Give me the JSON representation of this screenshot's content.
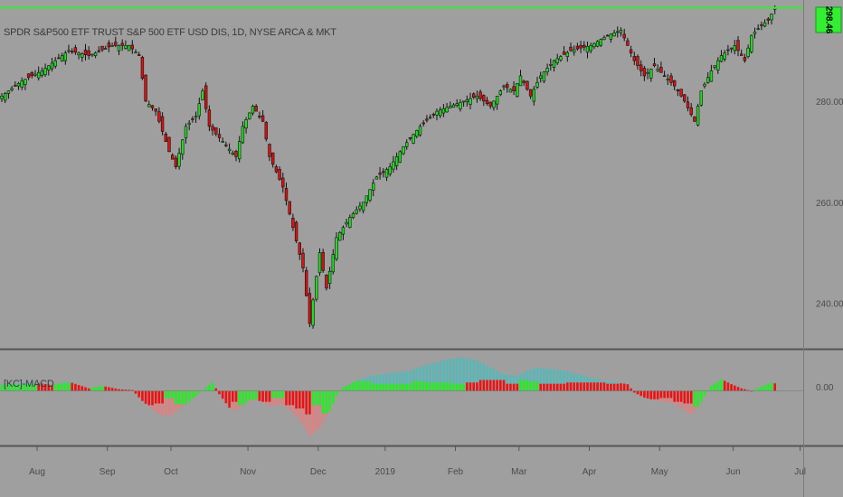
{
  "header": {
    "title": "SPDR S&P500 ETF TRUST S&P 500 ETF USD DIS, 1D, NYSE ARCA & MKT"
  },
  "indicator": {
    "label": "[KC]-MACD",
    "zero_label": "0.00"
  },
  "colors": {
    "background": "#9f9f9f",
    "up": "#22dd22",
    "down": "#dd1111",
    "hline": "#33ee33",
    "hist_pos": "#56b8b8",
    "hist_neg": "#e08080",
    "signal_up": "#22ee22",
    "signal_down": "#ee1111",
    "divider": "#555555"
  },
  "chart_data": {
    "type": "candlestick",
    "price_scale": {
      "ticks": [
        "240.00",
        "260.00",
        "280.00"
      ],
      "tick_values": [
        240,
        260,
        280
      ],
      "ylim": [
        231,
        300
      ],
      "last_price": "298.46",
      "last_price_value": 298.46
    },
    "x_axis": {
      "labels": [
        "Aug",
        "Sep",
        "Oct",
        "Nov",
        "Dec",
        "2019",
        "Feb",
        "Mar",
        "Apr",
        "May",
        "Jun",
        "Jul"
      ],
      "month_start_bar": [
        0,
        21,
        40,
        63,
        84,
        104,
        125,
        144,
        165,
        186,
        208,
        228
      ]
    },
    "close_waypoints": [
      [
        0,
        281
      ],
      [
        6,
        284
      ],
      [
        12,
        286
      ],
      [
        20,
        290
      ],
      [
        26,
        289
      ],
      [
        33,
        291
      ],
      [
        38,
        291
      ],
      [
        41,
        289
      ],
      [
        43,
        280
      ],
      [
        46,
        278
      ],
      [
        50,
        270
      ],
      [
        52,
        267
      ],
      [
        55,
        275
      ],
      [
        58,
        277
      ],
      [
        60,
        282
      ],
      [
        62,
        275
      ],
      [
        66,
        272
      ],
      [
        70,
        269
      ],
      [
        72,
        275
      ],
      [
        75,
        279
      ],
      [
        78,
        276
      ],
      [
        80,
        269
      ],
      [
        82,
        266
      ],
      [
        84,
        263
      ],
      [
        87,
        255
      ],
      [
        90,
        247
      ],
      [
        92,
        236
      ],
      [
        95,
        250
      ],
      [
        97,
        243
      ],
      [
        100,
        253
      ],
      [
        104,
        257
      ],
      [
        108,
        260
      ],
      [
        112,
        265
      ],
      [
        116,
        267
      ],
      [
        120,
        271
      ],
      [
        125,
        275
      ],
      [
        130,
        278
      ],
      [
        134,
        279
      ],
      [
        138,
        280
      ],
      [
        142,
        281
      ],
      [
        146,
        279
      ],
      [
        150,
        283
      ],
      [
        153,
        282
      ],
      [
        155,
        285
      ],
      [
        158,
        281
      ],
      [
        161,
        285
      ],
      [
        165,
        288
      ],
      [
        170,
        290
      ],
      [
        176,
        291
      ],
      [
        181,
        293
      ],
      [
        185,
        294
      ],
      [
        187,
        291
      ],
      [
        189,
        288
      ],
      [
        192,
        285
      ],
      [
        195,
        287
      ],
      [
        198,
        285
      ],
      [
        201,
        283
      ],
      [
        204,
        280
      ],
      [
        207,
        276
      ],
      [
        209,
        282
      ],
      [
        212,
        286
      ],
      [
        215,
        289
      ],
      [
        219,
        291
      ],
      [
        222,
        288
      ],
      [
        224,
        293
      ],
      [
        227,
        295
      ],
      [
        229,
        296
      ],
      [
        231,
        298.46
      ]
    ],
    "macd_hist_waypoints": [
      [
        0,
        0.4
      ],
      [
        10,
        0.5
      ],
      [
        15,
        0.35
      ],
      [
        20,
        0.55
      ],
      [
        26,
        0.15
      ],
      [
        30,
        0.3
      ],
      [
        35,
        0.1
      ],
      [
        39,
        0.05
      ],
      [
        42,
        -0.6
      ],
      [
        45,
        -1.1
      ],
      [
        48,
        -1.5
      ],
      [
        51,
        -1.4
      ],
      [
        55,
        -0.8
      ],
      [
        58,
        -0.3
      ],
      [
        61,
        0.2
      ],
      [
        63,
        0.5
      ],
      [
        65,
        -0.2
      ],
      [
        68,
        -1.0
      ],
      [
        70,
        -1.2
      ],
      [
        73,
        -0.7
      ],
      [
        76,
        -0.5
      ],
      [
        80,
        -0.9
      ],
      [
        84,
        -0.8
      ],
      [
        87,
        -1.3
      ],
      [
        90,
        -2.0
      ],
      [
        92,
        -2.7
      ],
      [
        95,
        -2.2
      ],
      [
        98,
        -1.2
      ],
      [
        100,
        -0.3
      ],
      [
        102,
        0.2
      ],
      [
        106,
        0.6
      ],
      [
        110,
        0.9
      ],
      [
        114,
        1.0
      ],
      [
        118,
        1.1
      ],
      [
        122,
        1.2
      ],
      [
        126,
        1.5
      ],
      [
        130,
        1.7
      ],
      [
        134,
        1.9
      ],
      [
        138,
        2.0
      ],
      [
        142,
        1.8
      ],
      [
        146,
        1.4
      ],
      [
        150,
        1.0
      ],
      [
        154,
        0.9
      ],
      [
        157,
        1.2
      ],
      [
        160,
        1.4
      ],
      [
        164,
        1.3
      ],
      [
        168,
        1.2
      ],
      [
        172,
        1.0
      ],
      [
        176,
        0.8
      ],
      [
        180,
        0.6
      ],
      [
        184,
        0.5
      ],
      [
        187,
        0.4
      ],
      [
        189,
        -0.1
      ],
      [
        192,
        -0.4
      ],
      [
        196,
        -0.6
      ],
      [
        200,
        -0.7
      ],
      [
        203,
        -1.0
      ],
      [
        206,
        -1.4
      ],
      [
        208,
        -1.0
      ],
      [
        210,
        -0.3
      ],
      [
        212,
        0.3
      ],
      [
        215,
        0.7
      ],
      [
        218,
        0.4
      ],
      [
        221,
        0.15
      ],
      [
        224,
        0.0
      ],
      [
        227,
        0.25
      ],
      [
        230,
        0.5
      ],
      [
        231,
        0.45
      ]
    ],
    "hist_ylim": [
      -3.2,
      2.4
    ],
    "grid": false,
    "legend": "none"
  }
}
